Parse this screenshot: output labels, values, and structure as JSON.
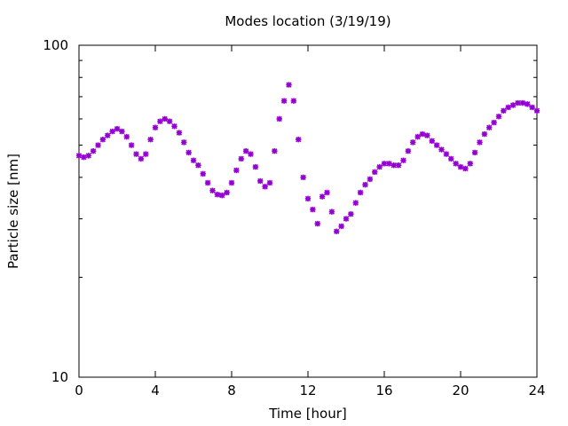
{
  "chart_data": {
    "type": "scatter",
    "title": "Modes location (3/19/19)",
    "xlabel": "Time [hour]",
    "ylabel": "Particle size [nm]",
    "xlim": [
      0,
      24
    ],
    "ylim": [
      10,
      100
    ],
    "y_scale": "log",
    "grid": false,
    "x_ticks": [
      0,
      4,
      8,
      12,
      16,
      20,
      24
    ],
    "x_tick_labels": [
      "0",
      "4",
      "8",
      "12",
      "16",
      "20",
      "24"
    ],
    "y_ticks": [
      10,
      100
    ],
    "y_tick_labels": [
      "10",
      "100"
    ],
    "marker": "asterisk",
    "color": "#9400d3",
    "x": [
      0.0,
      0.25,
      0.5,
      0.75,
      1.0,
      1.25,
      1.5,
      1.75,
      2.0,
      2.25,
      2.5,
      2.75,
      3.0,
      3.25,
      3.5,
      3.75,
      4.0,
      4.25,
      4.5,
      4.75,
      5.0,
      5.25,
      5.5,
      5.75,
      6.0,
      6.25,
      6.5,
      6.75,
      7.0,
      7.25,
      7.5,
      7.75,
      8.0,
      8.25,
      8.5,
      8.75,
      9.0,
      9.25,
      9.5,
      9.75,
      10.0,
      10.25,
      10.5,
      10.75,
      11.0,
      11.25,
      11.5,
      11.75,
      12.0,
      12.25,
      12.5,
      12.75,
      13.0,
      13.25,
      13.5,
      13.75,
      14.0,
      14.25,
      14.5,
      14.75,
      15.0,
      15.25,
      15.5,
      15.75,
      16.0,
      16.25,
      16.5,
      16.75,
      17.0,
      17.25,
      17.5,
      17.75,
      18.0,
      18.25,
      18.5,
      18.75,
      19.0,
      19.25,
      19.5,
      19.75,
      20.0,
      20.25,
      20.5,
      20.75,
      21.0,
      21.25,
      21.5,
      21.75,
      22.0,
      22.25,
      22.5,
      22.75,
      23.0,
      23.25,
      23.5,
      23.75,
      24.0
    ],
    "y": [
      46.5,
      46.0,
      46.5,
      48.0,
      50.0,
      52.0,
      53.5,
      55.0,
      56.0,
      55.0,
      53.0,
      50.0,
      47.0,
      45.5,
      47.0,
      52.0,
      56.5,
      59.0,
      60.0,
      59.0,
      57.0,
      54.5,
      51.0,
      47.5,
      45.0,
      43.5,
      41.0,
      38.5,
      36.5,
      35.5,
      35.3,
      36.0,
      38.5,
      42.0,
      45.5,
      48.0,
      47.0,
      43.0,
      39.0,
      37.5,
      38.5,
      48.0,
      60.0,
      68.0,
      76.0,
      68.0,
      52.0,
      40.0,
      34.5,
      32.0,
      29.0,
      35.0,
      36.0,
      31.5,
      27.5,
      28.5,
      30.0,
      31.0,
      33.5,
      36.0,
      38.0,
      39.5,
      41.5,
      43.0,
      44.0,
      44.0,
      43.5,
      43.5,
      45.0,
      48.0,
      51.0,
      53.0,
      54.0,
      53.5,
      51.5,
      50.0,
      48.5,
      47.0,
      45.5,
      44.0,
      43.0,
      42.5,
      44.0,
      47.5,
      51.0,
      54.0,
      56.5,
      58.5,
      61.0,
      63.5,
      65.0,
      66.0,
      67.0,
      67.0,
      66.5,
      65.0,
      63.5
    ]
  }
}
